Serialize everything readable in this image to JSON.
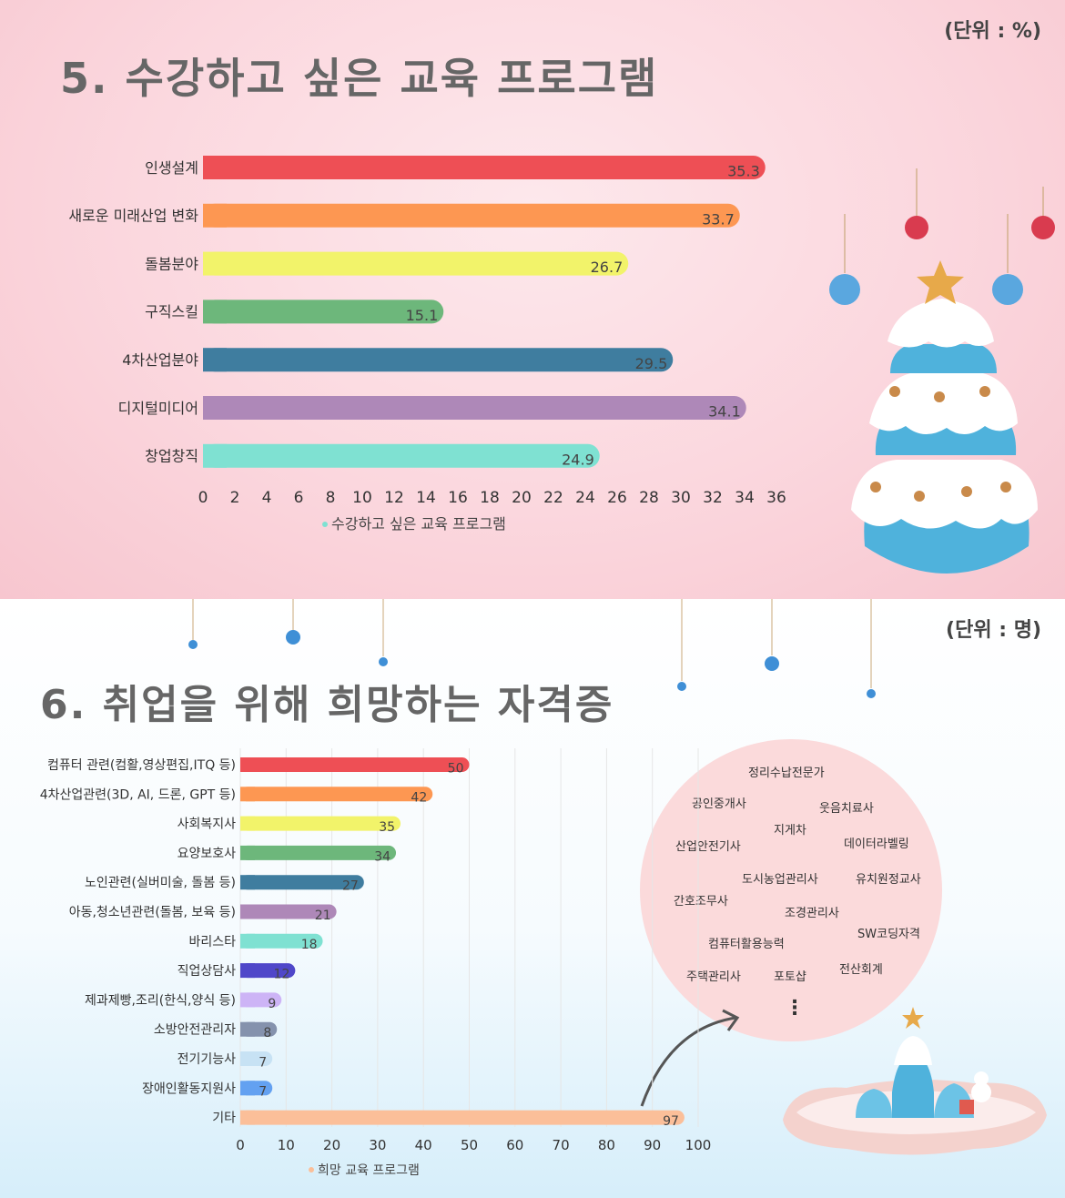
{
  "section5": {
    "title": "5. 수강하고 싶은 교육 프로그램",
    "unit": "(단위 : %)",
    "legend": "수강하고 싶은 교육 프로그램"
  },
  "section6": {
    "title": "6. 취업을 위해 희망하는 자격증",
    "unit": "(단위 : 명)",
    "legend": "희망 교육 프로그램",
    "other_certificates": [
      "정리수납전문가",
      "공인중개사",
      "웃음치료사",
      "지게차",
      "산업안전기사",
      "데이터라벨링",
      "도시농업관리사",
      "유치원정교사",
      "간호조무사",
      "조경관리사",
      "SW코딩자격",
      "컴퓨터활용능력",
      "전산회계",
      "주택관리사",
      "포토샵"
    ],
    "more_symbol": "⋮"
  },
  "chart_data": [
    {
      "type": "bar",
      "orientation": "horizontal",
      "title": "5. 수강하고 싶은 교육 프로그램",
      "unit": "%",
      "categories": [
        "인생설계",
        "새로운 미래산업 변화",
        "돌봄분야",
        "구직스킬",
        "4차산업분야",
        "디지털미디어",
        "창업창직"
      ],
      "values": [
        35.3,
        33.7,
        26.7,
        15.1,
        29.5,
        34.1,
        24.9
      ],
      "colors": [
        "#ee4f55",
        "#fd9752",
        "#f2f36a",
        "#6db77b",
        "#3f7d9f",
        "#ae88b8",
        "#7fe1d2"
      ],
      "series_name": "수강하고 싶은 교육 프로그램",
      "xlim": [
        0,
        36
      ],
      "xticks": [
        0,
        2,
        4,
        6,
        8,
        10,
        12,
        14,
        16,
        18,
        20,
        22,
        24,
        26,
        28,
        30,
        32,
        34,
        36
      ],
      "legend_position": "bottom"
    },
    {
      "type": "bar",
      "orientation": "horizontal",
      "title": "6. 취업을 위해 희망하는 자격증",
      "unit": "명",
      "categories": [
        "컴퓨터 관련(컴활,영상편집,ITQ 등)",
        "4차산업관련(3D, AI, 드론, GPT 등)",
        "사회복지사",
        "요양보호사",
        "노인관련(실버미술, 돌봄 등)",
        "아동,청소년관련(돌봄, 보육 등)",
        "바리스타",
        "직업상담사",
        "제과제빵,조리(한식,양식 등)",
        "소방안전관리자",
        "전기기능사",
        "장애인활동지원사",
        "기타"
      ],
      "values": [
        50,
        42,
        35,
        34,
        27,
        21,
        18,
        12,
        9,
        8,
        7,
        7,
        97
      ],
      "colors": [
        "#ee4f55",
        "#fd9752",
        "#f2f36a",
        "#6db77b",
        "#3f7d9f",
        "#ae88b8",
        "#7fe1d2",
        "#4f47c9",
        "#cdb4f6",
        "#8592ad",
        "#c7e2f4",
        "#63a1f1",
        "#fbbf99"
      ],
      "series_name": "희망 교육 프로그램",
      "xlim": [
        0,
        100
      ],
      "xticks": [
        0,
        10,
        20,
        30,
        40,
        50,
        60,
        70,
        80,
        90,
        100
      ],
      "grid": true,
      "legend_position": "bottom"
    }
  ]
}
